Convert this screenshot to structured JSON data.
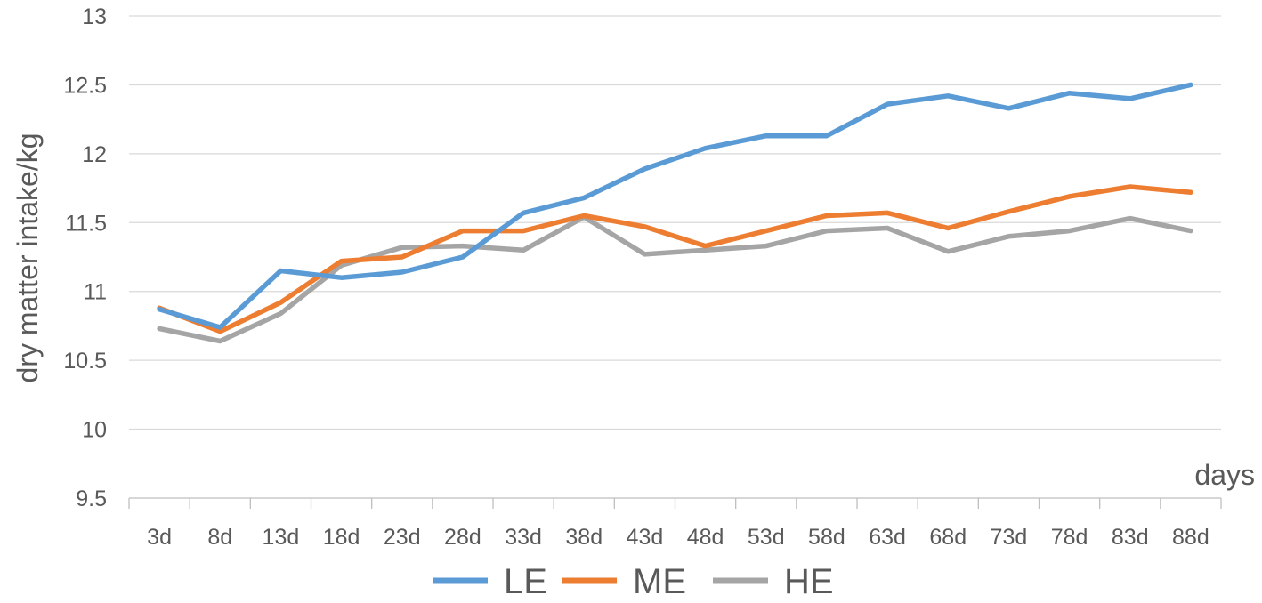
{
  "chart_data": {
    "type": "line",
    "title": "",
    "xlabel": "days",
    "ylabel": "dry matter intake/kg",
    "ylim": [
      9.5,
      13
    ],
    "ytick_step": 0.5,
    "grid": true,
    "legend_position": "bottom",
    "categories": [
      "3d",
      "8d",
      "13d",
      "18d",
      "23d",
      "28d",
      "33d",
      "38d",
      "43d",
      "48d",
      "53d",
      "58d",
      "63d",
      "68d",
      "73d",
      "78d",
      "83d",
      "88d"
    ],
    "series": [
      {
        "name": "LE",
        "color": "#5b9bd5",
        "values": [
          10.87,
          10.74,
          11.15,
          11.1,
          11.14,
          11.25,
          11.57,
          11.68,
          11.89,
          12.04,
          12.13,
          12.13,
          12.36,
          12.42,
          12.33,
          12.44,
          12.4,
          12.5
        ]
      },
      {
        "name": "ME",
        "color": "#ed7d31",
        "values": [
          10.88,
          10.71,
          10.92,
          11.22,
          11.25,
          11.44,
          11.44,
          11.55,
          11.47,
          11.33,
          11.44,
          11.55,
          11.57,
          11.46,
          11.58,
          11.69,
          11.76,
          11.72
        ]
      },
      {
        "name": "HE",
        "color": "#a5a5a5",
        "values": [
          10.73,
          10.64,
          10.84,
          11.19,
          11.32,
          11.33,
          11.3,
          11.54,
          11.27,
          11.3,
          11.33,
          11.44,
          11.46,
          11.29,
          11.4,
          11.44,
          11.53,
          11.44
        ]
      }
    ]
  }
}
